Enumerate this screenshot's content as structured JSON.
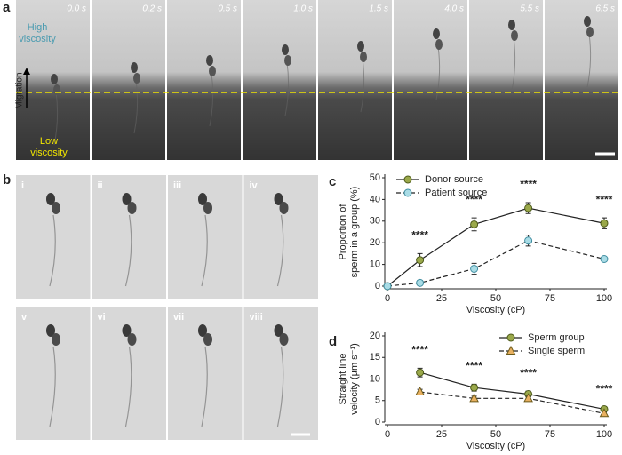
{
  "panel_a": {
    "label": "a",
    "times": [
      "0.0 s",
      "0.2 s",
      "0.5 s",
      "1.0 s",
      "1.5 s",
      "4.0 s",
      "5.5 s",
      "6.5 s"
    ],
    "high_label": [
      "High",
      "viscosity"
    ],
    "low_label": [
      "Low",
      "viscosity"
    ],
    "migration": "Migration"
  },
  "panel_b": {
    "label": "b",
    "numerals": [
      "i",
      "ii",
      "iii",
      "iv",
      "v",
      "vi",
      "vii",
      "viii"
    ]
  },
  "panel_labels": [
    "c",
    "d"
  ],
  "chart_data": [
    {
      "type": "line",
      "xlabel": "Viscosity (cP)",
      "ylabel": [
        "Proportion of",
        "sperm in a group (%)"
      ],
      "x": [
        0,
        15,
        40,
        65,
        100
      ],
      "series": [
        {
          "name": "Donor source",
          "color": "#4d5a1a",
          "fill": "#9aa84a",
          "marker": "circle",
          "dash": false,
          "values": [
            0,
            12,
            28.5,
            36,
            29
          ],
          "errors": [
            0,
            3,
            3,
            2.5,
            2.5
          ]
        },
        {
          "name": "Patient source",
          "color": "#3f8da0",
          "fill": "#a9dce6",
          "marker": "circle",
          "dash": true,
          "values": [
            0,
            1.5,
            8,
            21,
            12.5
          ],
          "errors": [
            0,
            1,
            2.5,
            2.5,
            1
          ]
        }
      ],
      "annotations": [
        {
          "x": 15,
          "text": "****"
        },
        {
          "x": 40,
          "text": "****"
        },
        {
          "x": 65,
          "text": "****"
        },
        {
          "x": 100,
          "text": "****"
        }
      ],
      "line_color": "#222",
      "xlim": [
        0,
        100
      ],
      "xticks": [
        0,
        25,
        50,
        75,
        100
      ],
      "ylim": [
        0,
        50
      ],
      "yticks": [
        0,
        10,
        20,
        30,
        40,
        50
      ],
      "legend": "upper left"
    },
    {
      "type": "line",
      "xlabel": "Viscosity (cP)",
      "ylabel": [
        "Straight line",
        "velocity (µm s⁻¹)"
      ],
      "x": [
        15,
        40,
        65,
        100
      ],
      "series": [
        {
          "name": "Sperm group",
          "color": "#4d5a1a",
          "fill": "#9aa84a",
          "marker": "circle",
          "dash": false,
          "values": [
            11.5,
            8,
            6.5,
            3
          ],
          "errors": [
            1,
            0.8,
            0.7,
            0.4
          ]
        },
        {
          "name": "Single sperm",
          "color": "#6b5a1a",
          "fill": "#e8b060",
          "marker": "triangle",
          "dash": true,
          "values": [
            7,
            5.5,
            5.5,
            2
          ],
          "errors": [
            0.6,
            0.5,
            0.5,
            0.3
          ]
        }
      ],
      "annotations": [
        {
          "x": 15,
          "text": "****"
        },
        {
          "x": 40,
          "text": "****"
        },
        {
          "x": 65,
          "text": "****"
        },
        {
          "x": 100,
          "text": "****"
        }
      ],
      "line_color": "#222",
      "xlim": [
        0,
        100
      ],
      "xticks": [
        0,
        25,
        50,
        75,
        100
      ],
      "ylim": [
        0,
        20
      ],
      "yticks": [
        0,
        5,
        10,
        15,
        20
      ],
      "legend": "upper right"
    }
  ]
}
